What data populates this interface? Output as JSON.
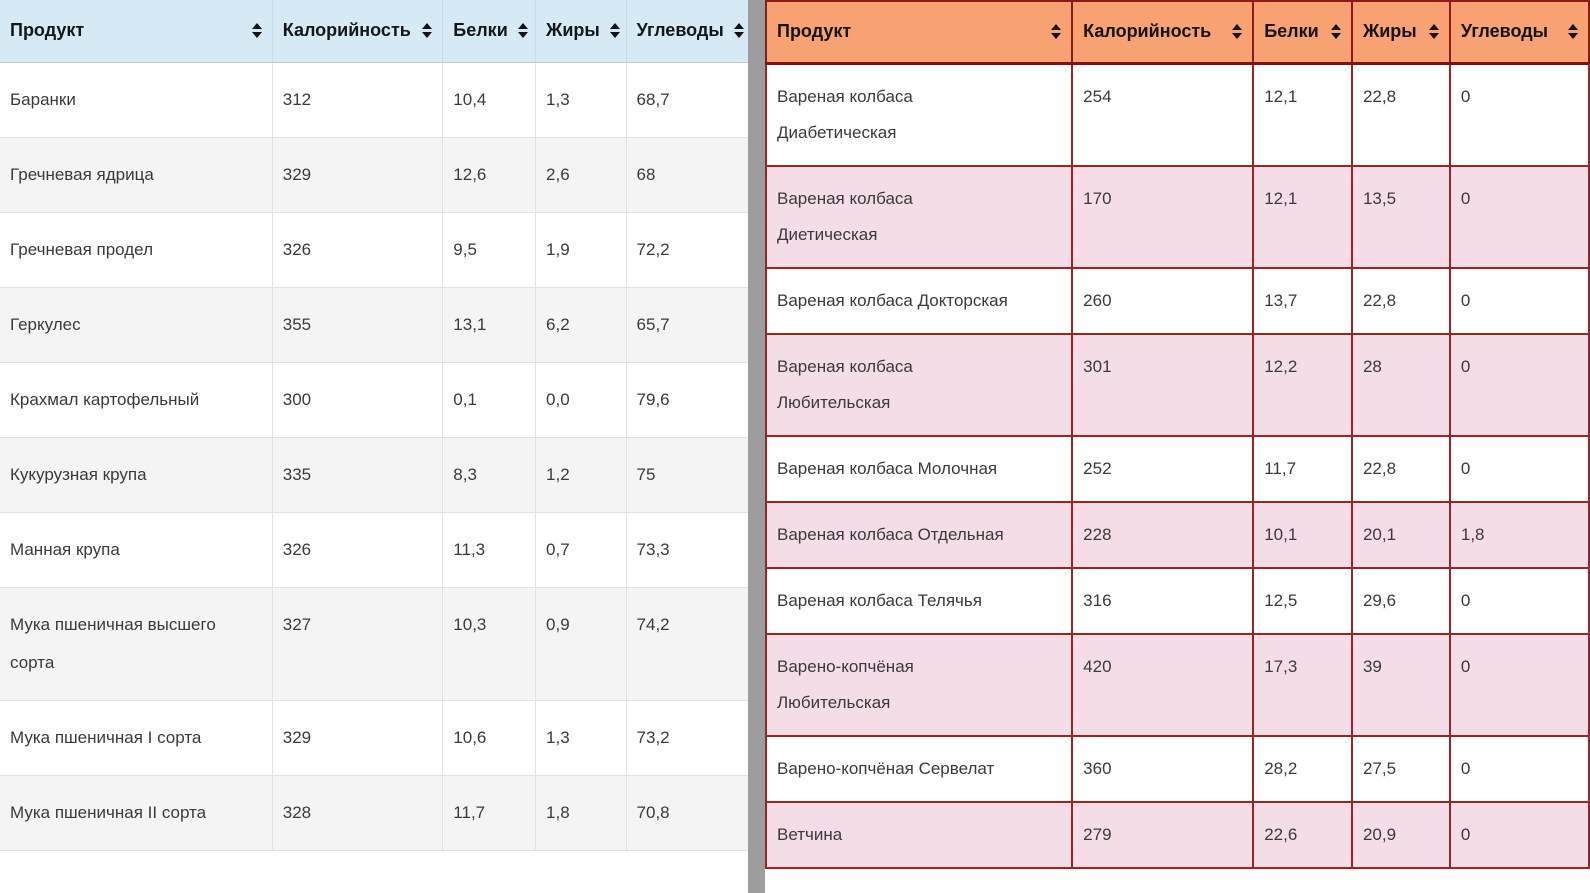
{
  "colors": {
    "left_header_bg": "#d5eaf5",
    "left_alt_row_bg": "#f4f4f4",
    "right_header_bg": "#f8a173",
    "right_alt_row_bg": "#f4dde6",
    "right_border": "#8e1b1b",
    "divider": "#9d9d9d"
  },
  "left_table": {
    "columns": [
      {
        "label": "Продукт"
      },
      {
        "label": "Калорийность"
      },
      {
        "label": "Белки"
      },
      {
        "label": "Жиры"
      },
      {
        "label": "Углеводы"
      }
    ],
    "rows": [
      {
        "product": "Баранки",
        "calories": "312",
        "protein": "10,4",
        "fat": "1,3",
        "carbs": "68,7"
      },
      {
        "product": "Гречневая ядрица",
        "calories": "329",
        "protein": "12,6",
        "fat": "2,6",
        "carbs": "68"
      },
      {
        "product": "Гречневая продел",
        "calories": "326",
        "protein": "9,5",
        "fat": "1,9",
        "carbs": "72,2"
      },
      {
        "product": "Геркулес",
        "calories": "355",
        "protein": "13,1",
        "fat": "6,2",
        "carbs": "65,7"
      },
      {
        "product": "Крахмал картофельный",
        "calories": "300",
        "protein": "0,1",
        "fat": "0,0",
        "carbs": "79,6"
      },
      {
        "product": "Кукурузная крупа",
        "calories": "335",
        "protein": "8,3",
        "fat": "1,2",
        "carbs": "75"
      },
      {
        "product": "Манная крупа",
        "calories": "326",
        "protein": "11,3",
        "fat": "0,7",
        "carbs": "73,3"
      },
      {
        "product": "Мука пшеничная высшего\nсорта",
        "calories": "327",
        "protein": "10,3",
        "fat": "0,9",
        "carbs": "74,2"
      },
      {
        "product": "Мука пшеничная I сорта",
        "calories": "329",
        "protein": "10,6",
        "fat": "1,3",
        "carbs": "73,2"
      },
      {
        "product": "Мука пшеничная II сорта",
        "calories": "328",
        "protein": "11,7",
        "fat": "1,8",
        "carbs": "70,8"
      }
    ]
  },
  "right_table": {
    "columns": [
      {
        "label": "Продукт"
      },
      {
        "label": "Калорийность"
      },
      {
        "label": "Белки"
      },
      {
        "label": "Жиры"
      },
      {
        "label": "Углеводы"
      }
    ],
    "rows": [
      {
        "product": "Вареная колбаса\nДиабетическая",
        "calories": "254",
        "protein": "12,1",
        "fat": "22,8",
        "carbs": "0"
      },
      {
        "product": "Вареная колбаса\nДиетическая",
        "calories": "170",
        "protein": "12,1",
        "fat": "13,5",
        "carbs": "0"
      },
      {
        "product": "Вареная колбаса Докторская",
        "calories": "260",
        "protein": "13,7",
        "fat": "22,8",
        "carbs": "0"
      },
      {
        "product": "Вареная колбаса\nЛюбительская",
        "calories": "301",
        "protein": "12,2",
        "fat": "28",
        "carbs": "0"
      },
      {
        "product": "Вареная колбаса Молочная",
        "calories": "252",
        "protein": "11,7",
        "fat": "22,8",
        "carbs": "0"
      },
      {
        "product": "Вареная колбаса Отдельная",
        "calories": "228",
        "protein": "10,1",
        "fat": "20,1",
        "carbs": "1,8"
      },
      {
        "product": "Вареная колбаса Телячья",
        "calories": "316",
        "protein": "12,5",
        "fat": "29,6",
        "carbs": "0"
      },
      {
        "product": "Варено-копчёная\nЛюбительская",
        "calories": "420",
        "protein": "17,3",
        "fat": "39",
        "carbs": "0"
      },
      {
        "product": "Варено-копчёная Сервелат",
        "calories": "360",
        "protein": "28,2",
        "fat": "27,5",
        "carbs": "0"
      },
      {
        "product": "Ветчина",
        "calories": "279",
        "protein": "22,6",
        "fat": "20,9",
        "carbs": "0"
      }
    ]
  }
}
